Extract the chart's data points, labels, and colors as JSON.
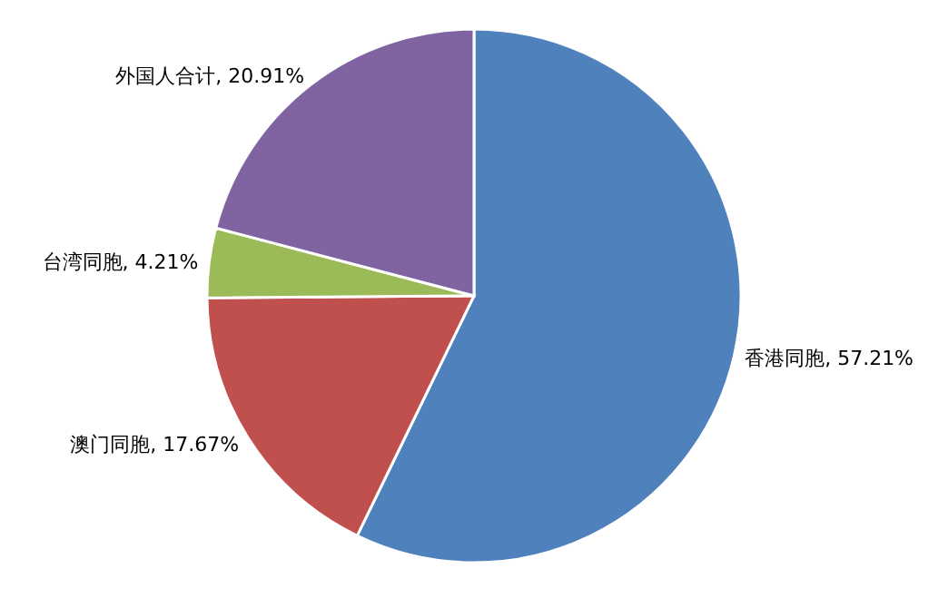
{
  "chart_data": {
    "type": "pie",
    "categories": [
      "香港同胞",
      "澳门同胞",
      "台湾同胞",
      "外国人合计"
    ],
    "values": [
      57.21,
      17.67,
      4.21,
      20.91
    ],
    "value_labels": [
      "57.21%",
      "17.67%",
      "4.21%",
      "20.91%"
    ],
    "colors": [
      "#4f81bd",
      "#c0504d",
      "#9bbb59",
      "#8064a2"
    ]
  }
}
